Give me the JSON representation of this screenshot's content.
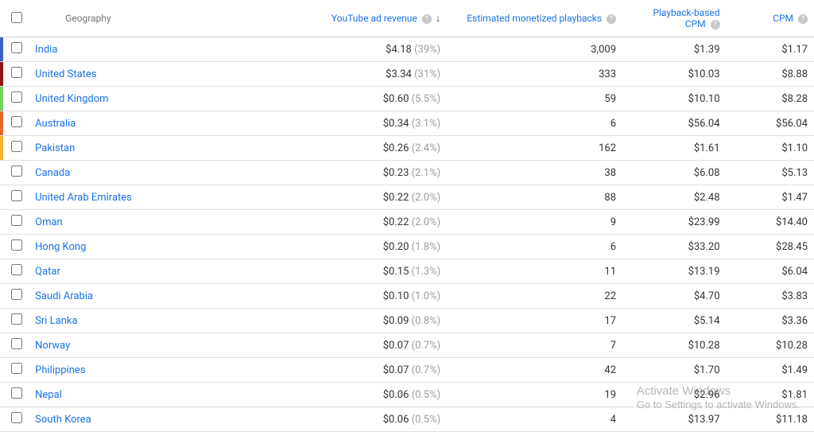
{
  "header": {
    "geography": "Geography",
    "revenue": "YouTube ad revenue",
    "playbacks": "Estimated monetized playbacks",
    "pcpm_line1": "Playback-based",
    "pcpm_line2": "CPM",
    "cpm": "CPM",
    "sort_arrow": "↓"
  },
  "colors": {
    "link": "#1a73e8",
    "muted": "#9e9e9e",
    "border": "#e0e0e0"
  },
  "rows": [
    {
      "country": "India",
      "revenue": "$4.18",
      "pct": "39%",
      "playbacks": "3,009",
      "pcpm": "$1.39",
      "cpm": "$1.17",
      "stripe": "#3b5fc0"
    },
    {
      "country": "United States",
      "revenue": "$3.34",
      "pct": "31%",
      "playbacks": "333",
      "pcpm": "$10.03",
      "cpm": "$8.88",
      "stripe": "#8a1515"
    },
    {
      "country": "United Kingdom",
      "revenue": "$0.60",
      "pct": "5.5%",
      "playbacks": "59",
      "pcpm": "$10.10",
      "cpm": "$8.28",
      "stripe": "#73d05a"
    },
    {
      "country": "Australia",
      "revenue": "$0.34",
      "pct": "3.1%",
      "playbacks": "6",
      "pcpm": "$56.04",
      "cpm": "$56.04",
      "stripe": "#e06a2b"
    },
    {
      "country": "Pakistan",
      "revenue": "$0.26",
      "pct": "2.4%",
      "playbacks": "162",
      "pcpm": "$1.61",
      "cpm": "$1.10",
      "stripe": "#f2b431"
    },
    {
      "country": "Canada",
      "revenue": "$0.23",
      "pct": "2.1%",
      "playbacks": "38",
      "pcpm": "$6.08",
      "cpm": "$5.13",
      "stripe": ""
    },
    {
      "country": "United Arab Emirates",
      "revenue": "$0.22",
      "pct": "2.0%",
      "playbacks": "88",
      "pcpm": "$2.48",
      "cpm": "$1.47",
      "stripe": ""
    },
    {
      "country": "Oman",
      "revenue": "$0.22",
      "pct": "2.0%",
      "playbacks": "9",
      "pcpm": "$23.99",
      "cpm": "$14.40",
      "stripe": ""
    },
    {
      "country": "Hong Kong",
      "revenue": "$0.20",
      "pct": "1.8%",
      "playbacks": "6",
      "pcpm": "$33.20",
      "cpm": "$28.45",
      "stripe": ""
    },
    {
      "country": "Qatar",
      "revenue": "$0.15",
      "pct": "1.3%",
      "playbacks": "11",
      "pcpm": "$13.19",
      "cpm": "$6.04",
      "stripe": ""
    },
    {
      "country": "Saudi Arabia",
      "revenue": "$0.10",
      "pct": "1.0%",
      "playbacks": "22",
      "pcpm": "$4.70",
      "cpm": "$3.83",
      "stripe": ""
    },
    {
      "country": "Sri Lanka",
      "revenue": "$0.09",
      "pct": "0.8%",
      "playbacks": "17",
      "pcpm": "$5.14",
      "cpm": "$3.36",
      "stripe": ""
    },
    {
      "country": "Norway",
      "revenue": "$0.07",
      "pct": "0.7%",
      "playbacks": "7",
      "pcpm": "$10.28",
      "cpm": "$10.28",
      "stripe": ""
    },
    {
      "country": "Philippines",
      "revenue": "$0.07",
      "pct": "0.7%",
      "playbacks": "42",
      "pcpm": "$1.70",
      "cpm": "$1.49",
      "stripe": ""
    },
    {
      "country": "Nepal",
      "revenue": "$0.06",
      "pct": "0.5%",
      "playbacks": "19",
      "pcpm": "$2.96",
      "cpm": "$1.81",
      "stripe": ""
    },
    {
      "country": "South Korea",
      "revenue": "$0.06",
      "pct": "0.5%",
      "playbacks": "4",
      "pcpm": "$13.97",
      "cpm": "$11.18",
      "stripe": ""
    }
  ],
  "watermark": {
    "line1": "Activate Windows",
    "line2": "Go to Settings to activate Windows."
  }
}
